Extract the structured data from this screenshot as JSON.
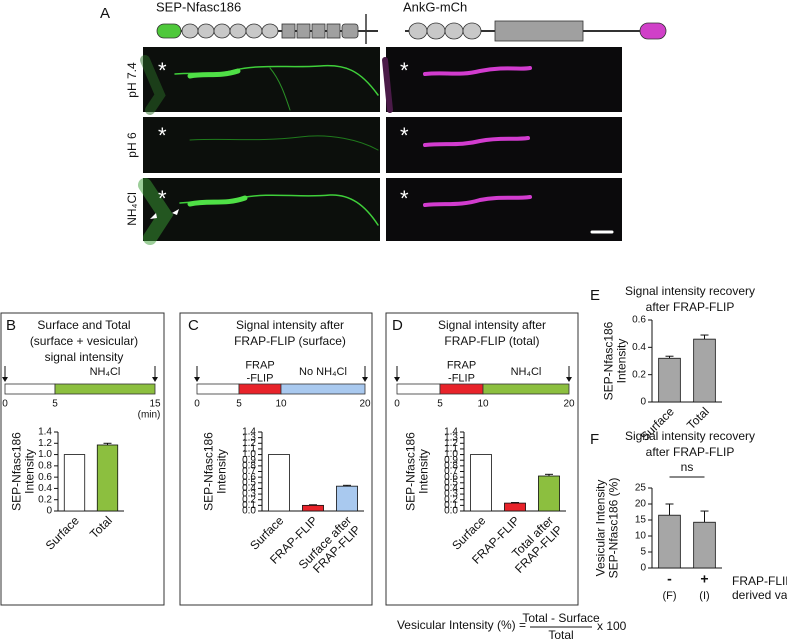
{
  "figure": {
    "panel_a": {
      "letter": "A",
      "constructs": [
        "SEP-Nfasc186",
        "AnkG-mCh"
      ],
      "rows": [
        "pH 7.4",
        "pH 6",
        "NH₄Cl"
      ],
      "asterisk": "*"
    }
  },
  "timelines": [
    {
      "ticks": [
        0,
        5,
        15
      ],
      "unit": "(min)",
      "colors": [
        "#ffffff",
        "#8cbf3f"
      ],
      "labels": {
        "1": "NH₄Cl"
      }
    },
    {
      "ticks": [
        0,
        5,
        10,
        20
      ],
      "colors": [
        "#ffffff",
        "#e8232a",
        "#a9c9ef"
      ],
      "labels": {
        "1": "FRAP\n-FLIP",
        "2": "No NH₄Cl"
      }
    },
    {
      "ticks": [
        0,
        5,
        10,
        20
      ],
      "colors": [
        "#ffffff",
        "#e8232a",
        "#8cbf3f"
      ],
      "labels": {
        "1": "FRAP\n-FLIP",
        "2": "NH₄Cl"
      }
    }
  ],
  "formula": {
    "lhs": "Vesicular Intensity (%) =",
    "numerator": "Total - Surface",
    "denominator": "Total",
    "factor": "x 100"
  },
  "chart_data": [
    {
      "type": "bar",
      "letter": "B",
      "title": "Surface and Total\n(surface + vesicular)\nsignal intensity",
      "y_label": "SEP-Nfasc186\nIntensity",
      "categories": [
        "Surface",
        "Total"
      ],
      "values": [
        1.0,
        1.17
      ],
      "errors": [
        null,
        0.03
      ],
      "colors": [
        "#ffffff",
        "#8cbf3f"
      ],
      "ylim": [
        0,
        1.4
      ],
      "yticks": [
        0,
        0.2,
        0.4,
        0.6,
        0.8,
        {
          "value": 1,
          "label": "1.0"
        },
        1.2,
        1.4
      ]
    },
    {
      "type": "bar",
      "letter": "C",
      "title": "Signal intensity after\nFRAP-FLIP (surface)",
      "y_label": "SEP-Nfasc186\nIntensity",
      "categories": [
        "Surface",
        "FRAP-FLIP",
        "Surface after\nFRAP-FLIP"
      ],
      "values": [
        1.0,
        0.1,
        0.44
      ],
      "errors": [
        null,
        0.01,
        0.015
      ],
      "colors": [
        "#ffffff",
        "#e8232a",
        "#a9c9ef"
      ],
      "ylim": [
        0,
        1.4
      ],
      "yticks": [
        {
          "value": 0,
          "label": "0.0"
        },
        0.1,
        0.2,
        0.3,
        0.4,
        0.5,
        0.6,
        0.7,
        0.8,
        0.9,
        {
          "value": 1,
          "label": "1.0"
        },
        1.1,
        1.2,
        1.3,
        1.4
      ]
    },
    {
      "type": "bar",
      "letter": "D",
      "title": "Signal intensity after\nFRAP-FLIP (total)",
      "y_label": "SEP-Nfasc186\nIntensity",
      "categories": [
        "Surface",
        "FRAP-FLIP",
        "Total after\nFRAP-FLIP"
      ],
      "values": [
        1.0,
        0.14,
        0.62
      ],
      "errors": [
        null,
        0.01,
        0.03
      ],
      "colors": [
        "#ffffff",
        "#e8232a",
        "#8cbf3f"
      ],
      "ylim": [
        0,
        1.4
      ],
      "yticks": [
        {
          "value": 0,
          "label": "0.0"
        },
        0.1,
        0.2,
        0.3,
        0.4,
        0.5,
        0.6,
        0.7,
        0.8,
        0.9,
        {
          "value": 1,
          "label": "1.0"
        },
        1.1,
        1.2,
        1.3,
        1.4
      ]
    },
    {
      "type": "bar",
      "letter": "E",
      "title": "Signal intensity recovery\nafter FRAP-FLIP",
      "y_label": "SEP-Nfasc186\nIntensity",
      "categories": [
        "Surface",
        "Total"
      ],
      "values": [
        0.32,
        0.46
      ],
      "errors": [
        0.015,
        0.03
      ],
      "colors": [
        "#a6a6a6",
        "#a6a6a6"
      ],
      "ylim": [
        0,
        0.6
      ],
      "yticks": [
        0,
        0.2,
        0.4,
        0.6
      ]
    },
    {
      "type": "bar",
      "letter": "F",
      "title": "Signal intensity recovery\nafter FRAP-FLIP",
      "y_label": "Vesicular Intensity\nSEP-Nfasc186 (%)",
      "categories": [
        "-",
        "+"
      ],
      "category_sublabels": [
        "(F)",
        "(I)"
      ],
      "values": [
        16.5,
        14.3
      ],
      "errors": [
        3.5,
        3.5
      ],
      "colors": [
        "#a6a6a6",
        "#a6a6a6"
      ],
      "ylim": [
        0,
        25
      ],
      "yticks": [
        0,
        5,
        10,
        15,
        20,
        25
      ],
      "annotation": "ns",
      "legend_label": "FRAP-FLIP\nderived value"
    }
  ]
}
